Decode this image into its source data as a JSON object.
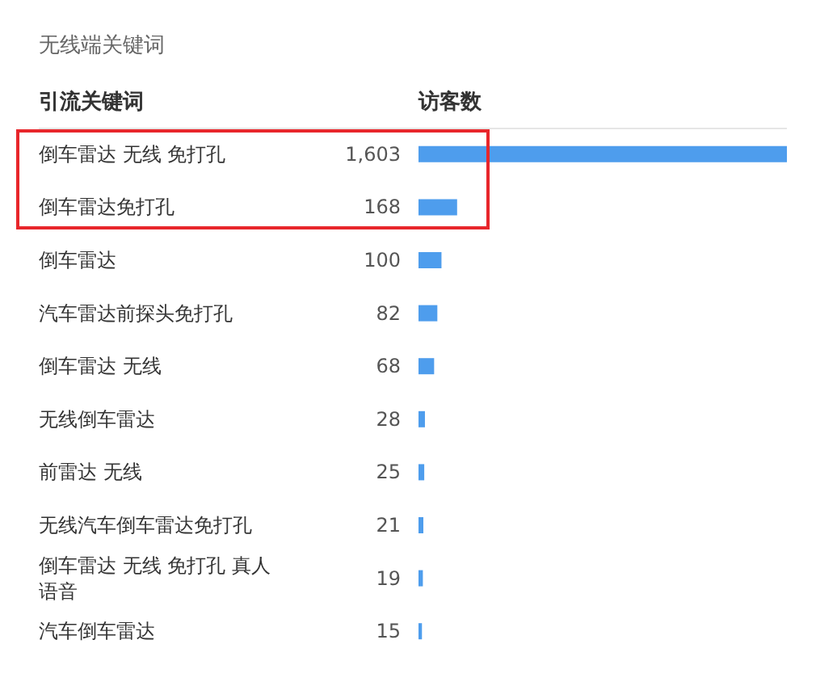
{
  "chart_data": {
    "type": "bar",
    "orientation": "horizontal",
    "title": "无线端关键词",
    "ylabel": "引流关键词",
    "xlabel": "访客数",
    "categories": [
      "倒车雷达 无线 免打孔",
      "倒车雷达免打孔",
      "倒车雷达",
      "汽车雷达前探头免打孔",
      "倒车雷达 无线",
      "无线倒车雷达",
      "前雷达 无线",
      "无线汽车倒车雷达免打孔",
      "倒车雷达 无线 免打孔 真人语音",
      "汽车倒车雷达"
    ],
    "values": [
      1603,
      168,
      100,
      82,
      68,
      28,
      25,
      21,
      19,
      15
    ],
    "value_labels": [
      "1,603",
      "168",
      "100",
      "82",
      "68",
      "28",
      "25",
      "21",
      "19",
      "15"
    ],
    "color": "#4e9ded",
    "tick_labels": "y"
  }
}
